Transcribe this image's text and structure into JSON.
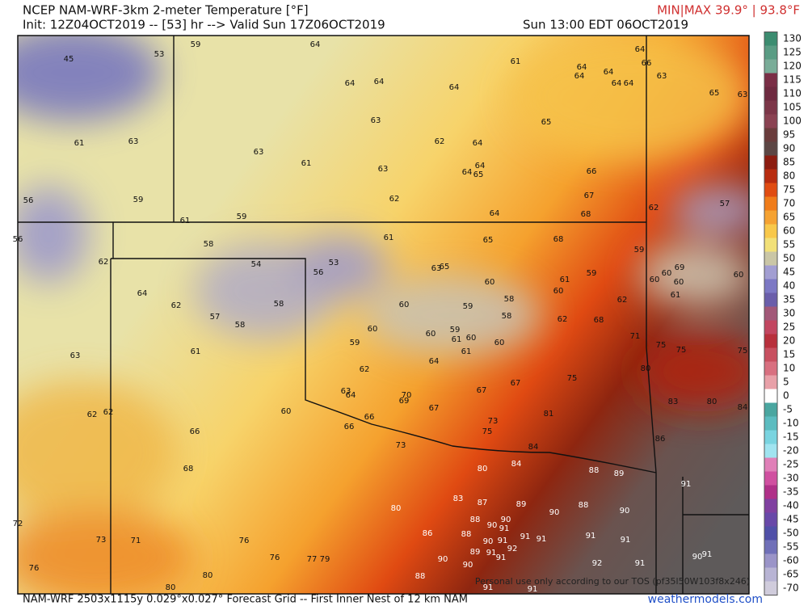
{
  "header": {
    "title": "NCEP NAM-WRF-3km 2-meter Temperature [°F]",
    "init": "Init: 12Z04OCT2019 -- [53] hr --> Valid Sun 17Z06OCT2019",
    "min_max": "MIN|MAX 39.9° | 93.8°F",
    "valid_local": "Sun 13:00 EDT 06OCT2019"
  },
  "map": {
    "watermark": "Personal use only according to our TOS (pf35l50W103f8x246)",
    "labels": [
      "45",
      "53",
      "59",
      "64",
      "61",
      "64",
      "64",
      "64",
      "64",
      "66",
      "63",
      "64",
      "64",
      "64",
      "64",
      "64",
      "65",
      "63",
      "61",
      "63",
      "63",
      "65",
      "62",
      "64",
      "63",
      "61",
      "63",
      "64",
      "64",
      "65",
      "66",
      "56",
      "59",
      "62",
      "67",
      "57",
      "62",
      "64",
      "68",
      "61",
      "59",
      "61",
      "65",
      "68",
      "56",
      "58",
      "59",
      "62",
      "54",
      "53",
      "56",
      "63",
      "65",
      "59",
      "69",
      "60",
      "60",
      "60",
      "60",
      "61",
      "60",
      "60",
      "61",
      "64",
      "62",
      "58",
      "57",
      "58",
      "60",
      "59",
      "58",
      "58",
      "62",
      "62",
      "68",
      "60",
      "59",
      "60",
      "61",
      "60",
      "60",
      "71",
      "75",
      "75",
      "75",
      "59",
      "61",
      "63",
      "64",
      "61",
      "62",
      "80",
      "75",
      "63",
      "64",
      "70",
      "69",
      "67",
      "67",
      "83",
      "80",
      "84",
      "67",
      "66",
      "60",
      "62",
      "62",
      "81",
      "73",
      "75",
      "66",
      "66",
      "86",
      "73",
      "84",
      "68",
      "80",
      "84",
      "88",
      "89",
      "91",
      "83",
      "87",
      "89",
      "80",
      "88",
      "90",
      "90",
      "88",
      "90",
      "72",
      "90",
      "91",
      "88",
      "86",
      "91",
      "91",
      "73",
      "71",
      "76",
      "91",
      "91",
      "90",
      "91",
      "89",
      "92",
      "91",
      "91",
      "90",
      "91",
      "76",
      "77",
      "79",
      "90",
      "90",
      "92",
      "91",
      "76",
      "80",
      "88",
      "80",
      "91",
      "91"
    ]
  },
  "colorbar": {
    "ticks": [
      130,
      125,
      120,
      115,
      110,
      105,
      100,
      95,
      90,
      85,
      80,
      75,
      70,
      65,
      60,
      55,
      50,
      45,
      40,
      35,
      30,
      25,
      20,
      15,
      10,
      5,
      0,
      -5,
      -10,
      -15,
      -20,
      -25,
      -30,
      -35,
      -40,
      -45,
      -50,
      -55,
      -60,
      -65,
      -70
    ],
    "colors": [
      "#3c8c70",
      "#5a9c84",
      "#7aac98",
      "#7a2e46",
      "#6e2a40",
      "#7c3648",
      "#8a4252",
      "#6a3c3c",
      "#5c4644",
      "#8c1c10",
      "#b82c10",
      "#e04c12",
      "#f07c1a",
      "#f5a232",
      "#f8c84a",
      "#f2e078",
      "#cac6a6",
      "#a29ed2",
      "#7c78c4",
      "#6a5eaa",
      "#a25878",
      "#c24660",
      "#b8303c",
      "#c85060",
      "#d87080",
      "#e8a0a8",
      "#ffffff",
      "#4aa6a0",
      "#5cbcc0",
      "#7ad4e0",
      "#a0e4f0",
      "#e080b8",
      "#d050a0",
      "#b03088",
      "#8040a0",
      "#6848a8",
      "#5050a8",
      "#7070b8",
      "#9a94c8",
      "#b8b4d4",
      "#d0ccdc"
    ]
  },
  "footer": {
    "grid_info": "NAM-WRF 2503x1115y 0.029°x0.027° Forecast Grid -- First Inner Nest of 12 km NAM",
    "site": "weathermodels.com"
  }
}
